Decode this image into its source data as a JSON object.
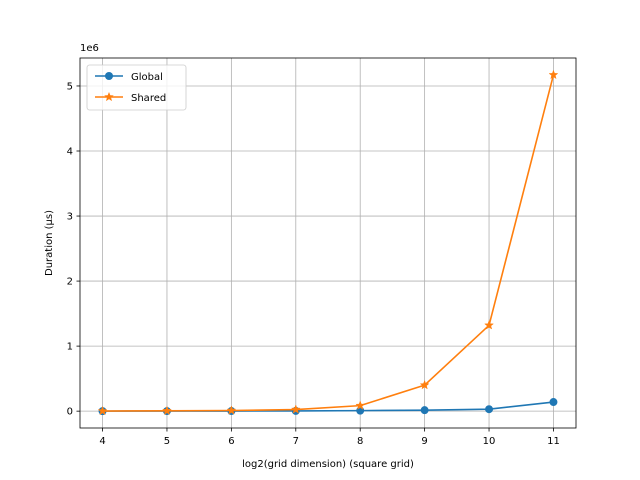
{
  "chart_data": {
    "type": "line",
    "xlabel": "log2(grid dimension) (square grid)",
    "ylabel": "Duration (µs)",
    "y_offset_label": "1e6",
    "x": [
      4,
      5,
      6,
      7,
      8,
      9,
      10,
      11
    ],
    "x_ticks": [
      "4",
      "5",
      "6",
      "7",
      "8",
      "9",
      "10",
      "11"
    ],
    "y_ticks": [
      "0",
      "1",
      "2",
      "3",
      "4",
      "5"
    ],
    "y_tick_values": [
      0,
      1000000,
      2000000,
      3000000,
      4000000,
      5000000
    ],
    "xlim": [
      3.65,
      11.35
    ],
    "ylim": [
      -259000,
      5430000
    ],
    "grid": true,
    "legend_position": "top-left",
    "series": [
      {
        "name": "Global",
        "color": "#1f77b4",
        "marker": "circle",
        "values": [
          500,
          1000,
          2000,
          4000,
          8000,
          15000,
          30000,
          140000
        ]
      },
      {
        "name": "Shared",
        "color": "#ff7f0e",
        "marker": "star",
        "values": [
          2000,
          5000,
          10000,
          25000,
          85000,
          400000,
          1320000,
          5170000
        ]
      }
    ]
  }
}
